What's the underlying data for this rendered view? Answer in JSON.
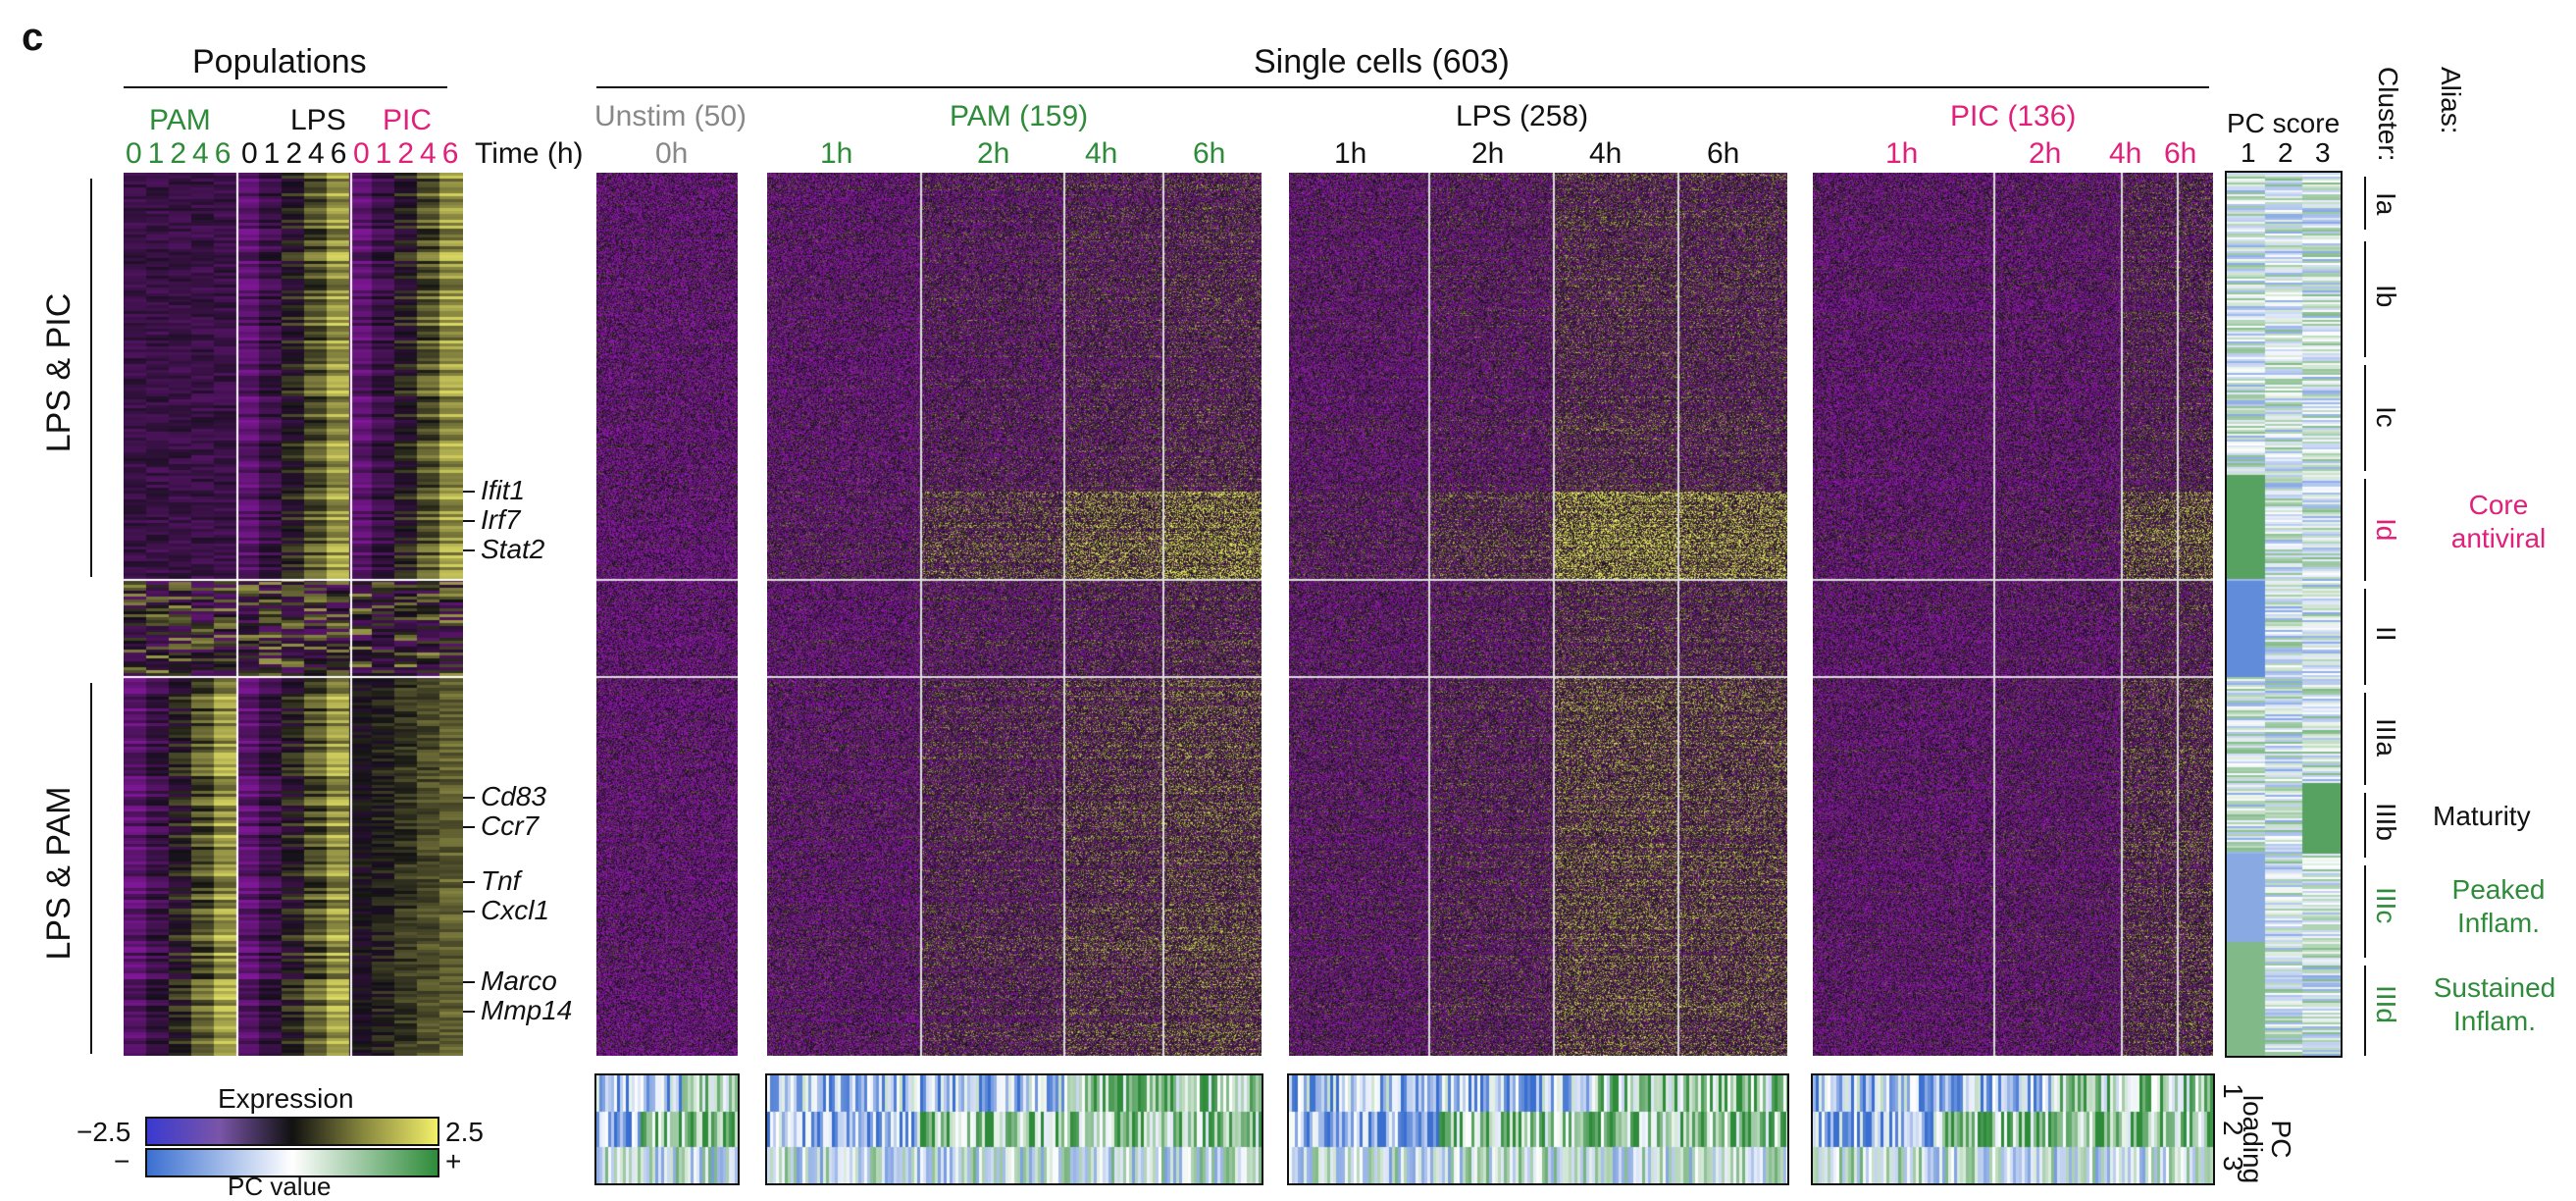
{
  "panel_letter": "c",
  "populations": {
    "title": "Populations",
    "groups": [
      {
        "name": "PAM",
        "color": "#2e8b3a",
        "times": "01246"
      },
      {
        "name": "LPS",
        "color": "#111111",
        "times": "01246"
      },
      {
        "name": "PIC",
        "color": "#e0207a",
        "times": "01246"
      }
    ],
    "time_label": "Time (h)"
  },
  "row_groups": [
    "LPS & PIC",
    "LPS & PAM"
  ],
  "genes": [
    "Ifit1",
    "Irf7",
    "Stat2",
    "Cd83",
    "Ccr7",
    "Tnf",
    "Cxcl1",
    "Marco",
    "Mmp14"
  ],
  "single_cells": {
    "title": "Single cells (603)",
    "conditions": [
      {
        "name": "Unstim (50)",
        "color": "#888888",
        "times": [
          "0h"
        ]
      },
      {
        "name": "PAM (159)",
        "color": "#2e8b3a",
        "times": [
          "1h",
          "2h",
          "4h",
          "6h"
        ]
      },
      {
        "name": "LPS (258)",
        "color": "#111111",
        "times": [
          "1h",
          "2h",
          "4h",
          "6h"
        ]
      },
      {
        "name": "PIC (136)",
        "color": "#e0207a",
        "times": [
          "1h",
          "2h",
          "4h",
          "6h"
        ]
      }
    ]
  },
  "pc_score": {
    "title": "PC score",
    "cols": [
      "1",
      "2",
      "3"
    ]
  },
  "cluster_header": "Cluster:",
  "alias_header": "Alias:",
  "clusters": [
    {
      "id": "Ia",
      "alias": "",
      "color": "#111111"
    },
    {
      "id": "Ib",
      "alias": "",
      "color": "#111111"
    },
    {
      "id": "Ic",
      "alias": "",
      "color": "#111111"
    },
    {
      "id": "Id",
      "alias": "Core antiviral",
      "color": "#e0207a"
    },
    {
      "id": "II",
      "alias": "",
      "color": "#111111"
    },
    {
      "id": "IIIa",
      "alias": "",
      "color": "#111111"
    },
    {
      "id": "IIIb",
      "alias": "Maturity",
      "color": "#111111"
    },
    {
      "id": "IIIc",
      "alias": "Peaked Inflam.",
      "color": "#2e8b3a"
    },
    {
      "id": "IIId",
      "alias": "Sustained Inflam.",
      "color": "#2e8b3a"
    }
  ],
  "pc_loading": {
    "label": "PC loading",
    "rows": [
      "1",
      "2",
      "3"
    ]
  },
  "legend": {
    "expression_label": "Expression",
    "expression_min": "−2.5",
    "expression_max": "2.5",
    "pc_label": "PC value",
    "pc_min": "−",
    "pc_max": "+"
  },
  "colors": {
    "purple": "#8a1a9e",
    "black": "#111111",
    "yellow": "#f2f06a",
    "blue": "#3a6fd0",
    "white": "#ffffff",
    "green": "#2e8b3a"
  }
}
